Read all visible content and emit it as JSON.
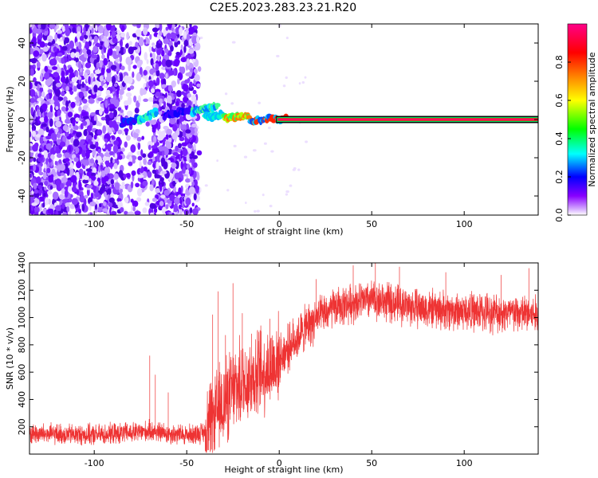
{
  "title": "C2E5.2023.283.23.21.R20",
  "chart_data": [
    {
      "type": "heatmap",
      "xlabel": "Height of straight line (km)",
      "ylabel": "Frequency (Hz)",
      "xlim": [
        -135,
        140
      ],
      "ylim": [
        -50,
        50
      ],
      "xticks": [
        -100,
        -50,
        0,
        50,
        100
      ],
      "yticks": [
        -40,
        -20,
        0,
        20,
        40
      ],
      "colorbar": {
        "label": "Normalized spectral amplitude",
        "range": [
          0,
          1
        ],
        "ticks": [
          0.0,
          0.2,
          0.4,
          0.6,
          0.8
        ],
        "colors": [
          "#ffffff",
          "#8800ff",
          "#0000ff",
          "#00ffff",
          "#00ff00",
          "#ffff00",
          "#ff8800",
          "#ff0000",
          "#ff0088"
        ]
      },
      "features": {
        "noise_region_km": [
          -135,
          -45
        ],
        "dense_noise_km": [
          [
            -135,
            -85
          ],
          [
            -68,
            -45
          ]
        ],
        "sparse_noise_km": [
          [
            -85,
            -68
          ]
        ],
        "signal_start_km": -85,
        "solid_line_start_km": 0,
        "line_frequency_hz": 0
      }
    },
    {
      "type": "line",
      "xlabel": "Height of straight line (km)",
      "ylabel": "SNR (10 * v/v)",
      "xlim": [
        -135,
        140
      ],
      "ylim": [
        0,
        1400
      ],
      "xticks": [
        -100,
        -50,
        0,
        50,
        100
      ],
      "yticks": [
        200,
        400,
        600,
        800,
        1000,
        1200,
        1400
      ],
      "series_color": "#ee3333",
      "trend": {
        "x": [
          -135,
          -100,
          -75,
          -70,
          -60,
          -50,
          -40,
          -35,
          -30,
          -25,
          -20,
          -15,
          -10,
          -5,
          0,
          5,
          10,
          15,
          20,
          25,
          30,
          40,
          50,
          60,
          75,
          90,
          110,
          125,
          140
        ],
        "y": [
          150,
          140,
          160,
          170,
          150,
          140,
          160,
          280,
          380,
          460,
          520,
          560,
          600,
          630,
          700,
          780,
          860,
          930,
          990,
          1030,
          1070,
          1110,
          1130,
          1110,
          1070,
          1050,
          1040,
          1030,
          1020
        ]
      },
      "spikes": [
        {
          "x": -70,
          "y": 720
        },
        {
          "x": -67,
          "y": 580
        },
        {
          "x": -60,
          "y": 450
        },
        {
          "x": -36,
          "y": 1020
        },
        {
          "x": -33,
          "y": 1190
        },
        {
          "x": -29,
          "y": 870
        },
        {
          "x": -25,
          "y": 1250
        },
        {
          "x": -20,
          "y": 1030
        },
        {
          "x": -15,
          "y": 880
        },
        {
          "x": -10,
          "y": 940
        },
        {
          "x": -5,
          "y": 990
        },
        {
          "x": 20,
          "y": 1280
        },
        {
          "x": 40,
          "y": 1380
        },
        {
          "x": 52,
          "y": 1420
        },
        {
          "x": 65,
          "y": 1370
        },
        {
          "x": 90,
          "y": 1330
        },
        {
          "x": 120,
          "y": 1310
        },
        {
          "x": 135,
          "y": 1360
        }
      ]
    }
  ]
}
